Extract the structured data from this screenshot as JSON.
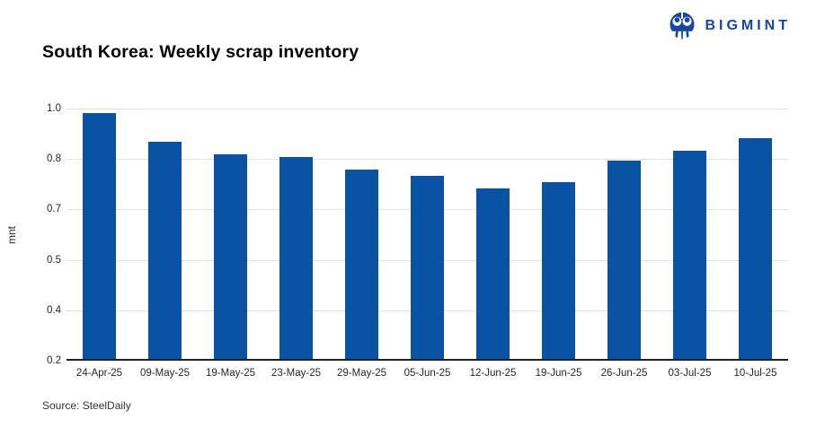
{
  "header": {
    "title": "South Korea: Weekly scrap inventory",
    "brand": {
      "name": "BIGMINT",
      "color": "#17469E"
    }
  },
  "chart_data": {
    "type": "bar",
    "title": "South Korea: Weekly scrap inventory",
    "xlabel": "",
    "ylabel": "mnt",
    "categories": [
      "24-Apr-25",
      "09-May-25",
      "19-May-25",
      "23-May-25",
      "29-May-25",
      "05-Jun-25",
      "12-Jun-25",
      "19-Jun-25",
      "26-Jun-25",
      "03-Jul-25",
      "10-Jul-25"
    ],
    "values": [
      0.98,
      0.89,
      0.85,
      0.84,
      0.8,
      0.78,
      0.74,
      0.76,
      0.83,
      0.86,
      0.9
    ],
    "ylim": [
      0.2,
      1.0
    ],
    "yticks": [
      {
        "value": 1.0,
        "label": "1.0"
      },
      {
        "value": 0.84,
        "label": "0.8"
      },
      {
        "value": 0.68,
        "label": "0.7"
      },
      {
        "value": 0.52,
        "label": "0.5"
      },
      {
        "value": 0.36,
        "label": "0.4"
      },
      {
        "value": 0.2,
        "label": "0.2"
      }
    ],
    "grid": true,
    "legend": false,
    "bar_color": "#0A53A4",
    "gridline_color": "#e1e1e1",
    "axis_line_color": "#1f1f1f"
  },
  "footer": {
    "source": "Source: SteelDaily"
  }
}
